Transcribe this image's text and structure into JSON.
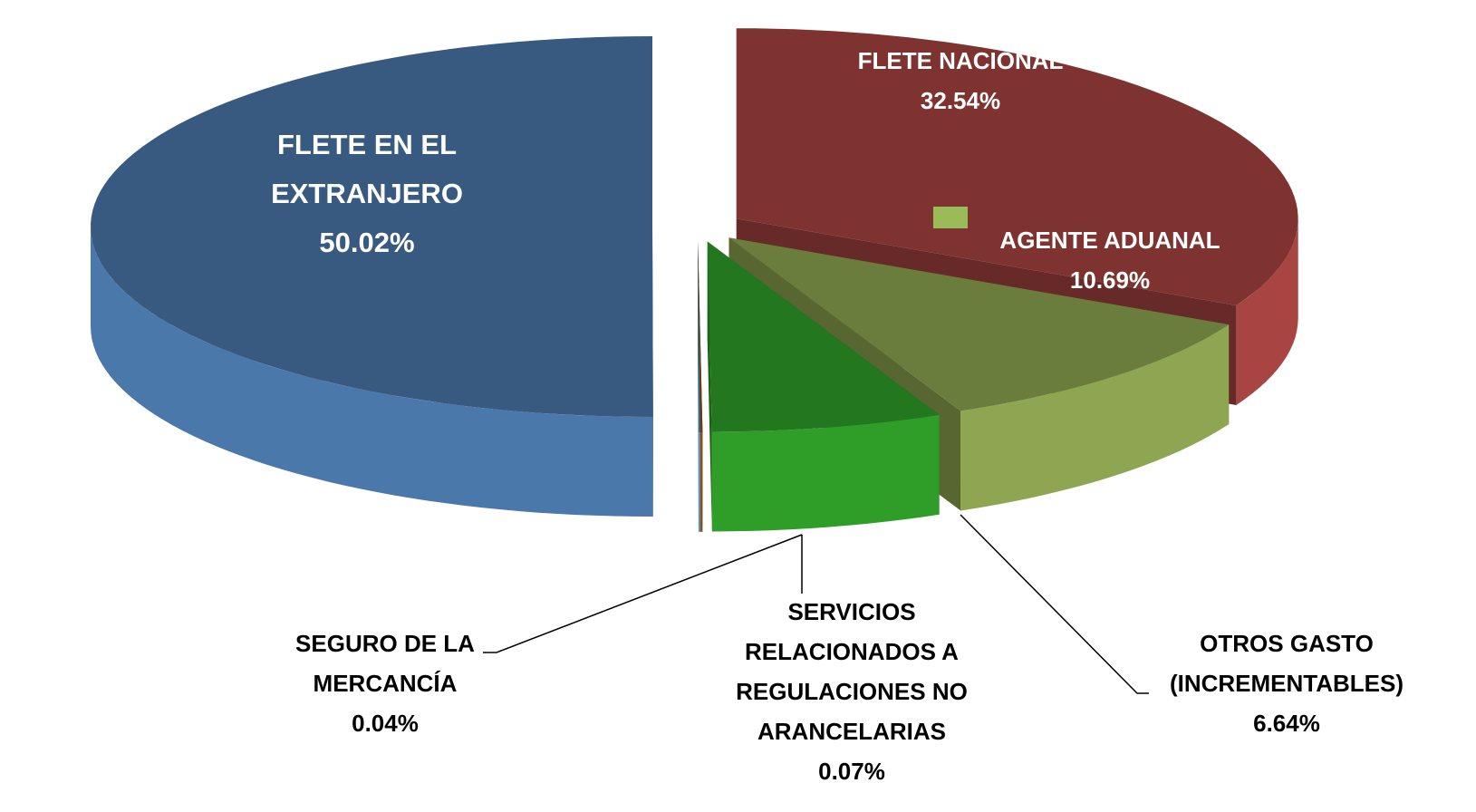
{
  "chart_data": {
    "type": "pie3d",
    "categories": [
      "FLETE NACIONAL",
      "AGENTE ADUANAL",
      "OTROS GASTO (INCREMENTABLES)",
      "SERVICIOS RELACIONADOS A REGULACIONES NO ARANCELARIAS",
      "SEGURO DE LA MERCANCÍA",
      "FLETE EN EL EXTRANJERO"
    ],
    "values": [
      32.54,
      10.69,
      6.64,
      0.07,
      0.04,
      50.02
    ],
    "value_labels": [
      "32.54%",
      "10.69%",
      "6.64%",
      "0.07%",
      "0.04%",
      "50.02%"
    ],
    "colors": [
      "#a84441",
      "#8ea651",
      "#2e9e28",
      "#8a4f24",
      "#4aa0c8",
      "#4a78ab"
    ]
  }
}
